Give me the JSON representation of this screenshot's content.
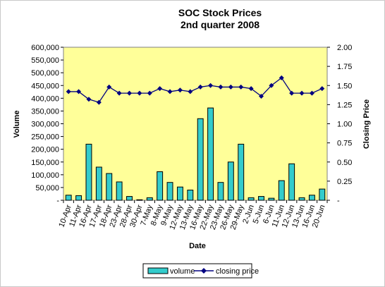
{
  "chart_data": {
    "type": "bar",
    "title": "SOC Stock Prices",
    "subtitle": "2nd quarter 2008",
    "xlabel": "Date",
    "ylabel_left": "Volume",
    "ylabel_right": "Closing Price",
    "left_axis": {
      "ylim": [
        0,
        600000
      ],
      "ticks": [
        "600,000",
        "550,000",
        "500,000",
        "450,000",
        "400,000",
        "350,000",
        "300,000",
        "250,000",
        "200,000",
        "150,000",
        "100,000",
        "50,000",
        "-"
      ]
    },
    "right_axis": {
      "ylim": [
        0,
        2.0
      ],
      "ticks": [
        "2.00",
        "1.75",
        "1.50",
        "1.25",
        "1.00",
        "0.75",
        "0.50",
        "0.25",
        "-"
      ]
    },
    "categories": [
      "10-Apr",
      "11-Apr",
      "16-Apr",
      "17-Apr",
      "18-Apr",
      "23-Apr",
      "28-Apr",
      "30-Apr",
      "7-May",
      "8-May",
      "9-May",
      "12-May",
      "13-May",
      "16-May",
      "22-May",
      "23-May",
      "26-May",
      "29-May",
      "2-Jun",
      "5-Jun",
      "6-Jun",
      "11-Jun",
      "12-Jun",
      "13-Jun",
      "16-Jun",
      "20-Jun"
    ],
    "series": [
      {
        "name": "volume",
        "type": "bar",
        "axis": "left",
        "color": "#33cccc",
        "values": [
          20000,
          18000,
          220000,
          130000,
          105000,
          72000,
          15000,
          2000,
          10000,
          112000,
          70000,
          52000,
          40000,
          320000,
          362000,
          70000,
          150000,
          220000,
          10000,
          15000,
          8000,
          77000,
          143000,
          10000,
          20000,
          44000
        ]
      },
      {
        "name": "closing price",
        "type": "line",
        "axis": "right",
        "color": "#000080",
        "values": [
          1.42,
          1.42,
          1.32,
          1.28,
          1.48,
          1.4,
          1.4,
          1.4,
          1.4,
          1.46,
          1.42,
          1.44,
          1.42,
          1.48,
          1.5,
          1.48,
          1.48,
          1.48,
          1.46,
          1.36,
          1.5,
          1.6,
          1.4,
          1.4,
          1.4,
          1.46
        ]
      }
    ],
    "plot_background": "#ffff99",
    "legend_position": "bottom"
  }
}
